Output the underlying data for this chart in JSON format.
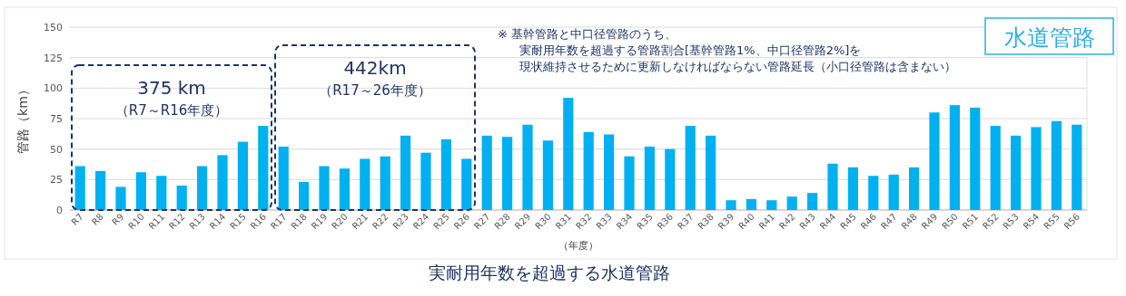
{
  "chart_data": {
    "type": "bar",
    "title": "実耐用年数を超過する水道管路",
    "xlabel": "（年度）",
    "ylabel": "管路（km）",
    "categories": [
      "R7",
      "R8",
      "R9",
      "R10",
      "R11",
      "R12",
      "R13",
      "R14",
      "R15",
      "R16",
      "R17",
      "R18",
      "R19",
      "R20",
      "R21",
      "R22",
      "R23",
      "R24",
      "R25",
      "R26",
      "R27",
      "R28",
      "R29",
      "R30",
      "R31",
      "R32",
      "R33",
      "R34",
      "R35",
      "R36",
      "R37",
      "R38",
      "R39",
      "R40",
      "R41",
      "R42",
      "R43",
      "R44",
      "R45",
      "R46",
      "R47",
      "R48",
      "R49",
      "R50",
      "R51",
      "R52",
      "R53",
      "R54",
      "R55",
      "R56"
    ],
    "values": [
      36,
      32,
      19,
      31,
      28,
      20,
      36,
      45,
      56,
      69,
      52,
      23,
      36,
      34,
      42,
      44,
      61,
      47,
      58,
      42,
      61,
      60,
      70,
      57,
      92,
      64,
      62,
      44,
      52,
      50,
      69,
      61,
      8,
      9,
      8,
      11,
      14,
      38,
      35,
      28,
      29,
      35,
      80,
      86,
      84,
      69,
      61,
      68,
      73,
      70
    ],
    "color": "#00b0f0",
    "ylim": [
      0,
      150
    ],
    "yticks": [
      0,
      25,
      50,
      75,
      100,
      125,
      150
    ],
    "grid": "y",
    "annotations": [
      "375 km",
      "（R7～R16年度）",
      "442km",
      "（R17～26年度）",
      "※ 基幹管路と中口径管路のうち、",
      "実耐用年数を超過する管路割合[基幹管路1%、中口径管路2%]を",
      "現状維持させるために更新しなければならない管路延長（小口径管路は含まない）",
      "水道管路"
    ]
  }
}
